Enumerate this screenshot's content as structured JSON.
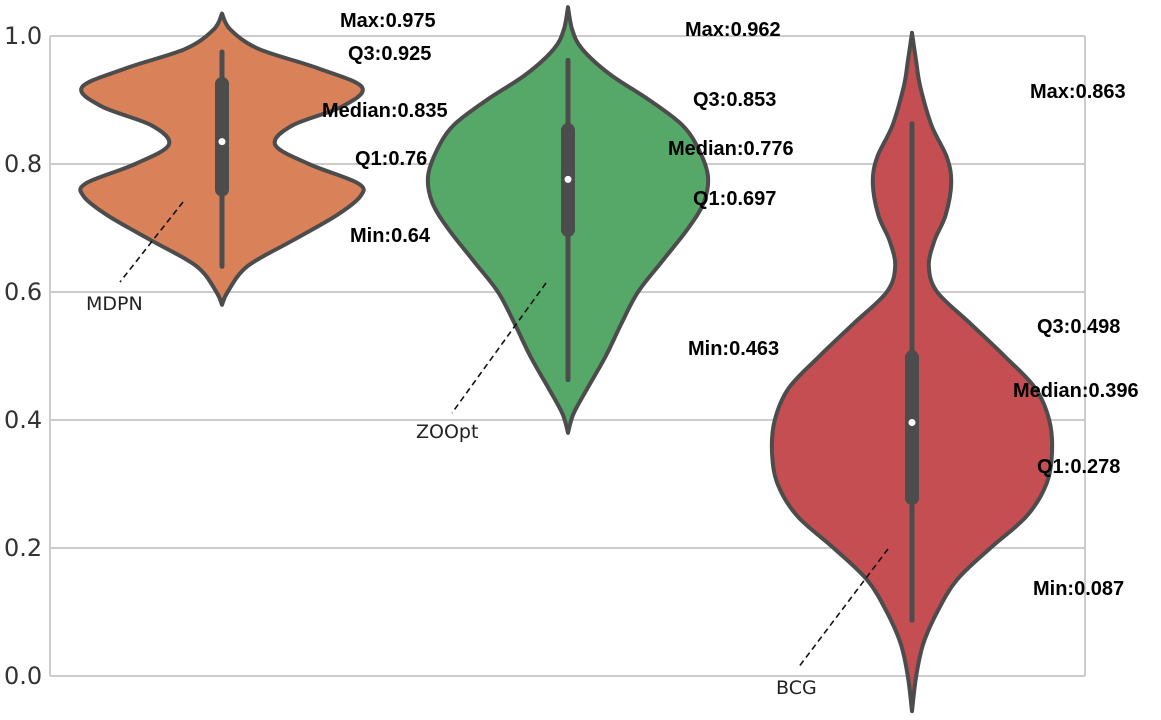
{
  "chart_data": {
    "type": "violin",
    "title": "",
    "xlabel": "",
    "ylabel": "",
    "ylim": [
      0.0,
      1.0
    ],
    "yticks": [
      "0.0",
      "0.2",
      "0.4",
      "0.6",
      "0.8",
      "1.0"
    ],
    "grid": "horizontal",
    "categories": [
      "MDPN",
      "ZOOpt",
      "BCG"
    ],
    "colors": [
      "#d9825a",
      "#55a868",
      "#c44e52"
    ],
    "outline_color": "#4c4c4c",
    "series": [
      {
        "name": "MDPN",
        "stats": {
          "max": 0.975,
          "q3": 0.925,
          "median": 0.835,
          "q1": 0.76,
          "min": 0.64
        },
        "labels": {
          "max": "Max:0.975",
          "q3": "Q3:0.925",
          "median": "Median:0.835",
          "q1": "Q1:0.76",
          "min": "Min:0.64"
        },
        "density_range": [
          0.58,
          1.035
        ],
        "density": [
          [
            0.58,
            0.0
          ],
          [
            0.6,
            0.04
          ],
          [
            0.64,
            0.18
          ],
          [
            0.68,
            0.5
          ],
          [
            0.72,
            0.82
          ],
          [
            0.75,
            0.99
          ],
          [
            0.77,
            0.97
          ],
          [
            0.8,
            0.62
          ],
          [
            0.83,
            0.38
          ],
          [
            0.86,
            0.5
          ],
          [
            0.89,
            0.86
          ],
          [
            0.92,
            1.0
          ],
          [
            0.95,
            0.68
          ],
          [
            0.98,
            0.26
          ],
          [
            1.01,
            0.06
          ],
          [
            1.035,
            0.0
          ]
        ]
      },
      {
        "name": "ZOOpt",
        "stats": {
          "max": 0.962,
          "q3": 0.853,
          "median": 0.776,
          "q1": 0.697,
          "min": 0.463
        },
        "labels": {
          "max": "Max:0.962",
          "q3": "Q3:0.853",
          "median": "Median:0.776",
          "q1": "Q1:0.697",
          "min": "Min:0.463"
        },
        "density_range": [
          0.38,
          1.045
        ],
        "density": [
          [
            0.38,
            0.0
          ],
          [
            0.41,
            0.04
          ],
          [
            0.45,
            0.14
          ],
          [
            0.5,
            0.27
          ],
          [
            0.55,
            0.38
          ],
          [
            0.6,
            0.5
          ],
          [
            0.65,
            0.68
          ],
          [
            0.7,
            0.86
          ],
          [
            0.74,
            0.97
          ],
          [
            0.78,
            1.0
          ],
          [
            0.82,
            0.94
          ],
          [
            0.86,
            0.82
          ],
          [
            0.9,
            0.58
          ],
          [
            0.94,
            0.3
          ],
          [
            0.98,
            0.1
          ],
          [
            1.01,
            0.03
          ],
          [
            1.045,
            0.0
          ]
        ]
      },
      {
        "name": "BCG",
        "stats": {
          "max": 0.863,
          "q3": 0.498,
          "median": 0.396,
          "q1": 0.278,
          "min": 0.087
        },
        "labels": {
          "max": "Max:0.863",
          "q3": "Q3:0.498",
          "median": "Median:0.396",
          "q1": "Q1:0.278",
          "min": "Min:0.087"
        },
        "density_range": [
          -0.055,
          1.005
        ],
        "density": [
          [
            -0.055,
            0.0
          ],
          [
            0.0,
            0.03
          ],
          [
            0.05,
            0.08
          ],
          [
            0.1,
            0.18
          ],
          [
            0.15,
            0.32
          ],
          [
            0.2,
            0.56
          ],
          [
            0.25,
            0.82
          ],
          [
            0.3,
            0.96
          ],
          [
            0.35,
            1.0
          ],
          [
            0.4,
            0.98
          ],
          [
            0.45,
            0.88
          ],
          [
            0.5,
            0.66
          ],
          [
            0.55,
            0.42
          ],
          [
            0.6,
            0.18
          ],
          [
            0.64,
            0.12
          ],
          [
            0.68,
            0.16
          ],
          [
            0.72,
            0.24
          ],
          [
            0.77,
            0.28
          ],
          [
            0.81,
            0.25
          ],
          [
            0.86,
            0.14
          ],
          [
            0.92,
            0.06
          ],
          [
            0.96,
            0.03
          ],
          [
            1.005,
            0.0
          ]
        ]
      }
    ]
  }
}
